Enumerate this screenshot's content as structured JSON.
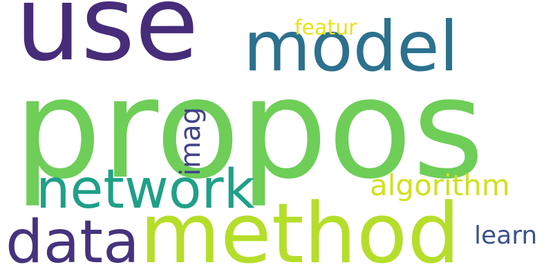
{
  "words": {
    "use": {
      "text": "use",
      "color": "#472c7a"
    },
    "propos": {
      "text": "propos",
      "color": "#6ece58"
    },
    "model": {
      "text": "model",
      "color": "#2c718e"
    },
    "featur": {
      "text": "featur",
      "color": "#e8e419"
    },
    "network": {
      "text": "network",
      "color": "#1fa088"
    },
    "algorithm": {
      "text": "algorithm",
      "color": "#d0e11c"
    },
    "data": {
      "text": "data",
      "color": "#46337e"
    },
    "method": {
      "text": "method",
      "color": "#b5de2b"
    },
    "learn": {
      "text": "learn",
      "color": "#3b528b"
    },
    "imag": {
      "text": "imag",
      "color": "#414487"
    }
  }
}
